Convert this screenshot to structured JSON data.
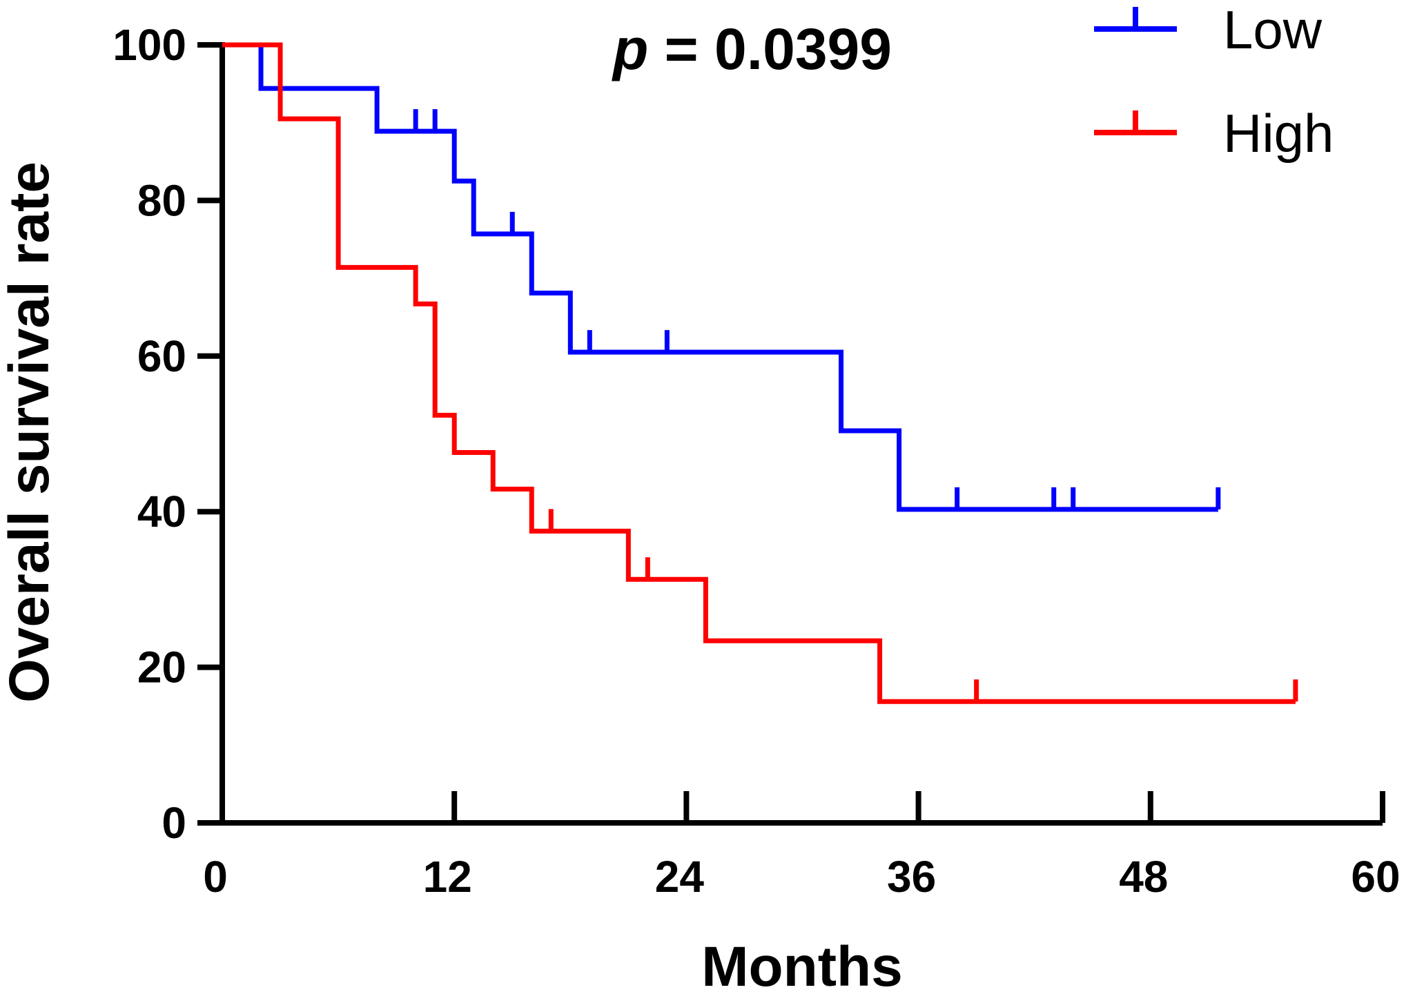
{
  "chart_data": {
    "type": "line",
    "subtype": "kaplan-meier step",
    "annotation": {
      "prefix": "p",
      "text": " = 0.0399"
    },
    "xlabel": "Months",
    "ylabel": "Overall survival rate",
    "xlim": [
      0,
      60
    ],
    "ylim": [
      0,
      100
    ],
    "xticks": [
      "0",
      "12",
      "24",
      "36",
      "48",
      "60"
    ],
    "yticks": [
      "0",
      "20",
      "40",
      "60",
      "80",
      "100"
    ],
    "grid": false,
    "legend_position": "top-right",
    "series": [
      {
        "name": "Low",
        "color": "#0000ff",
        "steps": [
          [
            0,
            100
          ],
          [
            2,
            94.4
          ],
          [
            8,
            88.9
          ],
          [
            12,
            82.5
          ],
          [
            13,
            75.7
          ],
          [
            16,
            68.1
          ],
          [
            18,
            60.5
          ],
          [
            32,
            50.4
          ],
          [
            35,
            40.3
          ]
        ],
        "end": 51.5,
        "censors": [
          [
            10,
            88.9
          ],
          [
            11,
            88.9
          ],
          [
            15,
            75.7
          ],
          [
            19,
            60.5
          ],
          [
            23,
            60.5
          ],
          [
            38,
            40.3
          ],
          [
            43,
            40.3
          ],
          [
            44,
            40.3
          ],
          [
            51.5,
            40.3
          ]
        ]
      },
      {
        "name": "High",
        "color": "#ff0000",
        "steps": [
          [
            0,
            100
          ],
          [
            3,
            90.5
          ],
          [
            6,
            71.4
          ],
          [
            10,
            66.7
          ],
          [
            11,
            52.4
          ],
          [
            12,
            47.6
          ],
          [
            14,
            42.9
          ],
          [
            16,
            37.5
          ],
          [
            21,
            31.3
          ],
          [
            25,
            23.4
          ],
          [
            34,
            15.6
          ]
        ],
        "end": 55.5,
        "censors": [
          [
            17,
            37.5
          ],
          [
            22,
            31.3
          ],
          [
            39,
            15.6
          ],
          [
            55.5,
            15.6
          ]
        ]
      }
    ]
  }
}
